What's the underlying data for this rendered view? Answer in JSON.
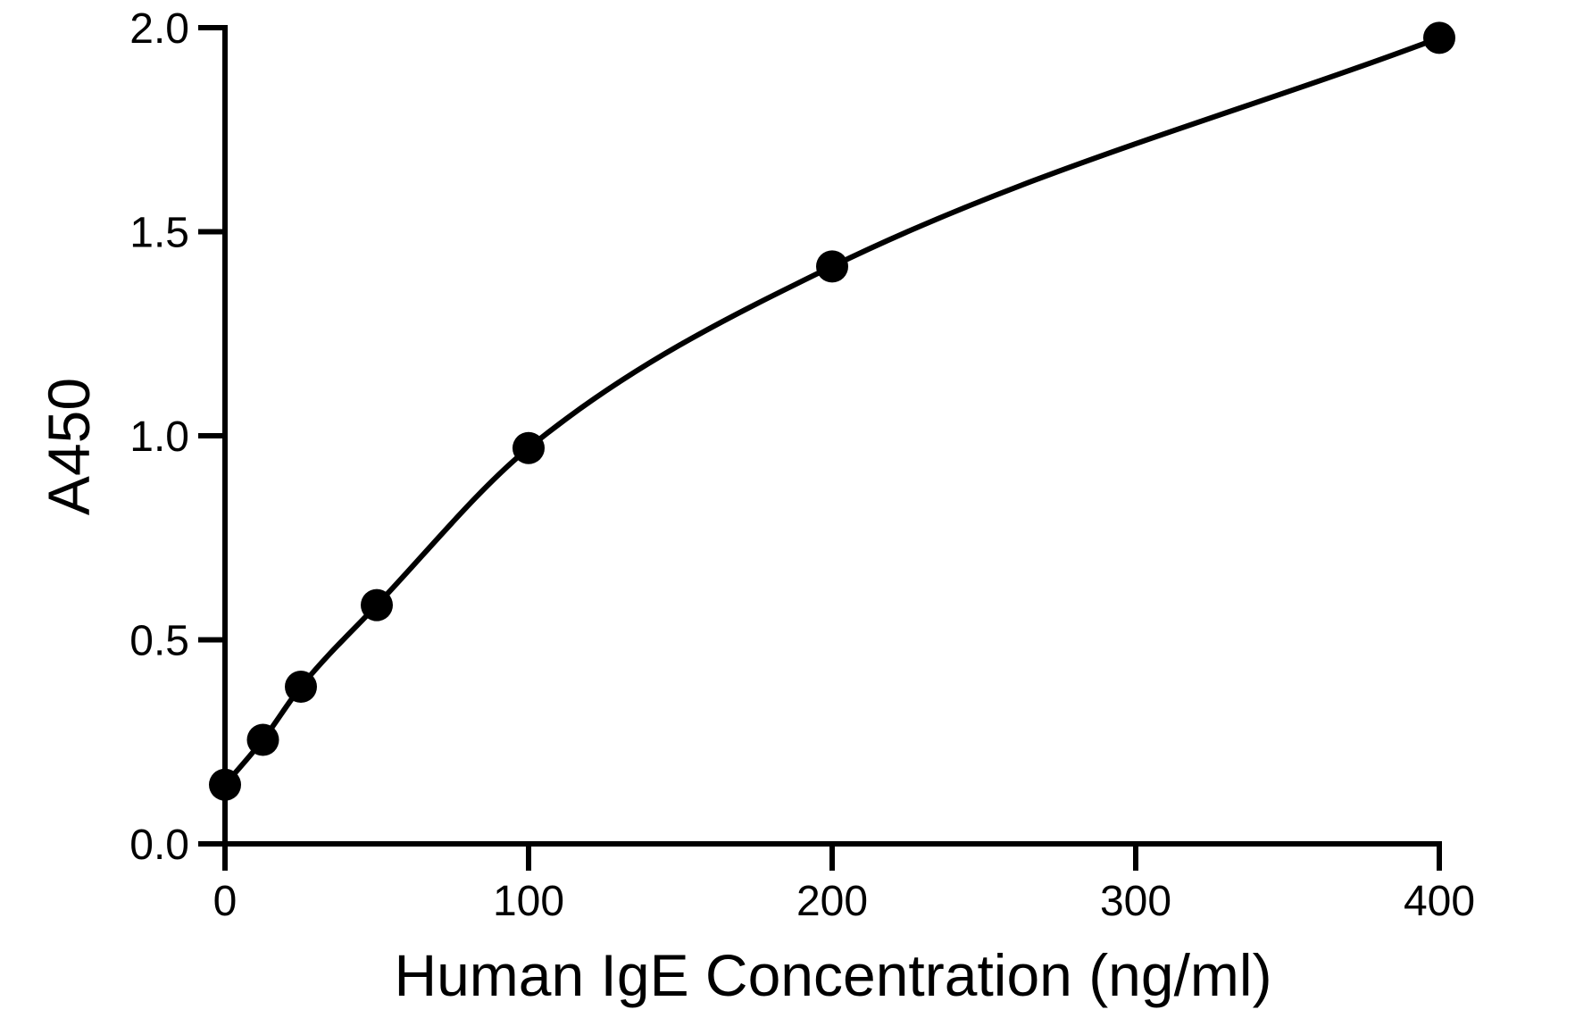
{
  "chart_data": {
    "type": "scatter",
    "title": "",
    "xlabel": "Human IgE Concentration (ng/ml)",
    "ylabel": "A450",
    "xlim": [
      0,
      400
    ],
    "ylim": [
      0,
      2.0
    ],
    "x_ticks": [
      "0",
      "100",
      "200",
      "300",
      "400"
    ],
    "y_ticks": [
      "0.0",
      "0.5",
      "1.0",
      "1.5",
      "2.0"
    ],
    "grid": false,
    "legend": "none",
    "fit_line": true,
    "series": [
      {
        "x": [
          0,
          12.5,
          25,
          50,
          100,
          200,
          400
        ],
        "y": [
          0.145,
          0.255,
          0.385,
          0.585,
          0.97,
          1.415,
          1.975
        ]
      }
    ],
    "colors": {
      "points": "#000000",
      "line": "#000000",
      "axes": "#000000"
    }
  }
}
